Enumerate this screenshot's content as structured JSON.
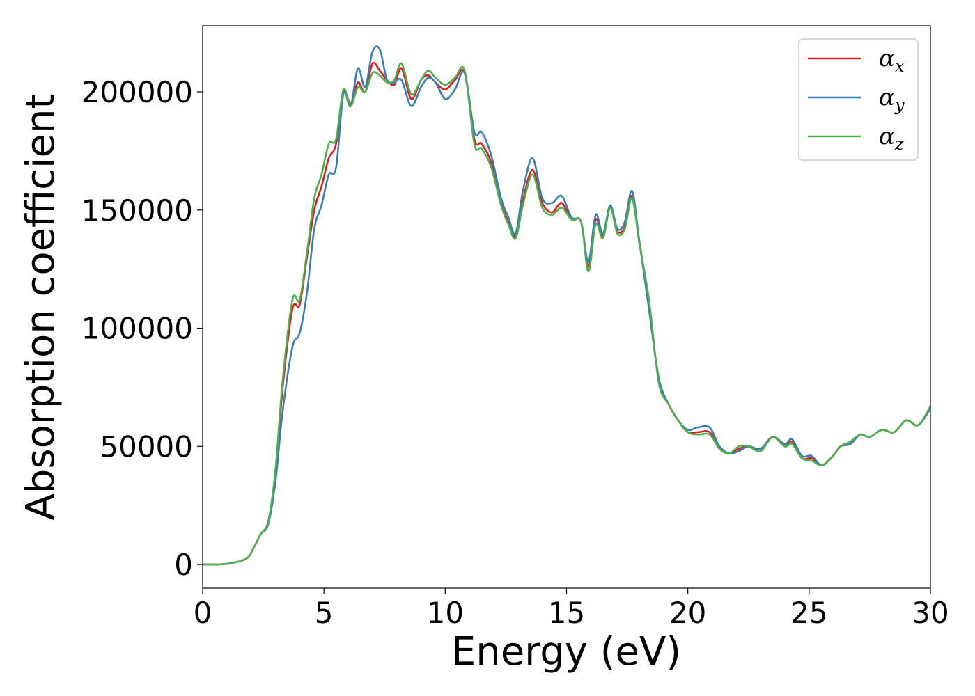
{
  "chart_data": {
    "type": "line",
    "xlabel": "Energy (eV)",
    "ylabel": "Absorption coefficient",
    "xlim": [
      0,
      30
    ],
    "ylim": [
      -10000,
      228000
    ],
    "xticks": [
      0,
      5,
      10,
      15,
      20,
      25,
      30
    ],
    "xtick_labels": [
      "0",
      "5",
      "10",
      "15",
      "20",
      "25",
      "30"
    ],
    "yticks": [
      0,
      50000,
      100000,
      150000,
      200000
    ],
    "ytick_labels": [
      "0",
      "50000",
      "100000",
      "150000",
      "200000"
    ],
    "grid": false,
    "legend_position": "top-right",
    "series": [
      {
        "name": "αx",
        "legend_base": "α",
        "legend_sub": "x",
        "color": "#e41a1c",
        "points": [
          [
            0,
            0
          ],
          [
            1,
            300
          ],
          [
            1.8,
            2500
          ],
          [
            2.1,
            7000
          ],
          [
            2.4,
            13000
          ],
          [
            2.7,
            18000
          ],
          [
            3,
            38000
          ],
          [
            3.3,
            75000
          ],
          [
            3.7,
            108000
          ],
          [
            4,
            110000
          ],
          [
            4.3,
            130000
          ],
          [
            4.6,
            150000
          ],
          [
            4.9,
            160000
          ],
          [
            5.2,
            172000
          ],
          [
            5.5,
            178000
          ],
          [
            5.8,
            200000
          ],
          [
            6.1,
            195000
          ],
          [
            6.4,
            204000
          ],
          [
            6.7,
            200000
          ],
          [
            7,
            212000
          ],
          [
            7.3,
            209000
          ],
          [
            7.6,
            205000
          ],
          [
            7.9,
            203000
          ],
          [
            8.2,
            210000
          ],
          [
            8.6,
            197000
          ],
          [
            9,
            205000
          ],
          [
            9.3,
            207000
          ],
          [
            9.6,
            204000
          ],
          [
            10,
            201000
          ],
          [
            10.4,
            205000
          ],
          [
            10.8,
            208000
          ],
          [
            11.2,
            180000
          ],
          [
            11.5,
            178000
          ],
          [
            11.9,
            170000
          ],
          [
            12.3,
            153000
          ],
          [
            12.6,
            145000
          ],
          [
            12.9,
            139000
          ],
          [
            13.2,
            154000
          ],
          [
            13.6,
            167000
          ],
          [
            14,
            153000
          ],
          [
            14.4,
            149000
          ],
          [
            14.8,
            153000
          ],
          [
            15.2,
            146000
          ],
          [
            15.6,
            145000
          ],
          [
            15.9,
            126000
          ],
          [
            16.2,
            146000
          ],
          [
            16.5,
            139000
          ],
          [
            16.8,
            151000
          ],
          [
            17.1,
            141000
          ],
          [
            17.4,
            143000
          ],
          [
            17.7,
            156000
          ],
          [
            18,
            137000
          ],
          [
            18.4,
            110000
          ],
          [
            18.8,
            78000
          ],
          [
            19.2,
            68000
          ],
          [
            19.6,
            61000
          ],
          [
            20,
            56000
          ],
          [
            20.4,
            56000
          ],
          [
            20.9,
            56000
          ],
          [
            21.3,
            50000
          ],
          [
            21.7,
            47000
          ],
          [
            22.1,
            49000
          ],
          [
            22.5,
            50000
          ],
          [
            23,
            49000
          ],
          [
            23.5,
            54000
          ],
          [
            24,
            50000
          ],
          [
            24.3,
            52000
          ],
          [
            24.7,
            45000
          ],
          [
            25.1,
            45000
          ],
          [
            25.5,
            42000
          ],
          [
            25.9,
            45000
          ],
          [
            26.3,
            50000
          ],
          [
            26.7,
            51000
          ],
          [
            27.1,
            55000
          ],
          [
            27.5,
            54000
          ],
          [
            28,
            57000
          ],
          [
            28.5,
            56000
          ],
          [
            29,
            61000
          ],
          [
            29.5,
            59000
          ],
          [
            30,
            67000
          ]
        ]
      },
      {
        "name": "αy",
        "legend_base": "α",
        "legend_sub": "y",
        "color": "#377eb8",
        "points": [
          [
            0,
            0
          ],
          [
            1,
            300
          ],
          [
            1.8,
            2500
          ],
          [
            2.1,
            7000
          ],
          [
            2.4,
            13000
          ],
          [
            2.7,
            17000
          ],
          [
            3,
            35000
          ],
          [
            3.3,
            65000
          ],
          [
            3.7,
            92000
          ],
          [
            4,
            98000
          ],
          [
            4.3,
            115000
          ],
          [
            4.6,
            142000
          ],
          [
            4.9,
            152000
          ],
          [
            5.2,
            165000
          ],
          [
            5.5,
            168000
          ],
          [
            5.8,
            199000
          ],
          [
            6.1,
            194000
          ],
          [
            6.4,
            210000
          ],
          [
            6.7,
            202000
          ],
          [
            7,
            217000
          ],
          [
            7.3,
            218000
          ],
          [
            7.6,
            205000
          ],
          [
            7.9,
            204000
          ],
          [
            8.2,
            205000
          ],
          [
            8.6,
            194000
          ],
          [
            9,
            202000
          ],
          [
            9.3,
            206000
          ],
          [
            9.6,
            204000
          ],
          [
            10,
            197000
          ],
          [
            10.4,
            201000
          ],
          [
            10.8,
            208000
          ],
          [
            11.2,
            183000
          ],
          [
            11.5,
            183000
          ],
          [
            11.9,
            173000
          ],
          [
            12.3,
            155000
          ],
          [
            12.6,
            147000
          ],
          [
            12.9,
            140000
          ],
          [
            13.2,
            158000
          ],
          [
            13.6,
            172000
          ],
          [
            14,
            155000
          ],
          [
            14.4,
            153000
          ],
          [
            14.8,
            156000
          ],
          [
            15.2,
            147000
          ],
          [
            15.6,
            145000
          ],
          [
            15.9,
            128000
          ],
          [
            16.2,
            148000
          ],
          [
            16.5,
            140000
          ],
          [
            16.8,
            152000
          ],
          [
            17.1,
            142000
          ],
          [
            17.4,
            145000
          ],
          [
            17.7,
            158000
          ],
          [
            18,
            137000
          ],
          [
            18.4,
            108000
          ],
          [
            18.8,
            79000
          ],
          [
            19.2,
            68000
          ],
          [
            19.6,
            61000
          ],
          [
            20,
            57000
          ],
          [
            20.4,
            58000
          ],
          [
            20.9,
            58000
          ],
          [
            21.3,
            50000
          ],
          [
            21.7,
            47000
          ],
          [
            22.1,
            48000
          ],
          [
            22.5,
            50000
          ],
          [
            23,
            49000
          ],
          [
            23.5,
            54000
          ],
          [
            24,
            51000
          ],
          [
            24.3,
            53000
          ],
          [
            24.7,
            46000
          ],
          [
            25.1,
            46000
          ],
          [
            25.5,
            42000
          ],
          [
            25.9,
            45000
          ],
          [
            26.3,
            50000
          ],
          [
            26.7,
            51000
          ],
          [
            27.1,
            55000
          ],
          [
            27.5,
            54000
          ],
          [
            28,
            57000
          ],
          [
            28.5,
            56000
          ],
          [
            29,
            61000
          ],
          [
            29.5,
            59000
          ],
          [
            30,
            66000
          ]
        ]
      },
      {
        "name": "αz",
        "legend_base": "α",
        "legend_sub": "z",
        "color": "#4daf4a",
        "points": [
          [
            0,
            0
          ],
          [
            1,
            300
          ],
          [
            1.8,
            2500
          ],
          [
            2.1,
            7000
          ],
          [
            2.4,
            13000
          ],
          [
            2.7,
            18000
          ],
          [
            3,
            40000
          ],
          [
            3.3,
            78000
          ],
          [
            3.7,
            112000
          ],
          [
            4,
            112000
          ],
          [
            4.3,
            132000
          ],
          [
            4.6,
            155000
          ],
          [
            4.9,
            165000
          ],
          [
            5.2,
            178000
          ],
          [
            5.5,
            180000
          ],
          [
            5.8,
            201000
          ],
          [
            6.1,
            194000
          ],
          [
            6.4,
            202000
          ],
          [
            6.7,
            200000
          ],
          [
            7,
            208000
          ],
          [
            7.3,
            207000
          ],
          [
            7.6,
            204000
          ],
          [
            7.9,
            205000
          ],
          [
            8.2,
            212000
          ],
          [
            8.6,
            199000
          ],
          [
            9,
            205000
          ],
          [
            9.3,
            209000
          ],
          [
            9.6,
            206000
          ],
          [
            10,
            203000
          ],
          [
            10.4,
            206000
          ],
          [
            10.8,
            209000
          ],
          [
            11.2,
            178000
          ],
          [
            11.5,
            176000
          ],
          [
            11.9,
            168000
          ],
          [
            12.3,
            152000
          ],
          [
            12.6,
            144000
          ],
          [
            12.9,
            138000
          ],
          [
            13.2,
            152000
          ],
          [
            13.6,
            165000
          ],
          [
            14,
            151000
          ],
          [
            14.4,
            148000
          ],
          [
            14.8,
            151000
          ],
          [
            15.2,
            146000
          ],
          [
            15.6,
            145000
          ],
          [
            15.9,
            124000
          ],
          [
            16.2,
            144000
          ],
          [
            16.5,
            138000
          ],
          [
            16.8,
            151000
          ],
          [
            17.1,
            140000
          ],
          [
            17.4,
            142000
          ],
          [
            17.7,
            155000
          ],
          [
            18,
            136000
          ],
          [
            18.4,
            112000
          ],
          [
            18.8,
            77000
          ],
          [
            19.2,
            68000
          ],
          [
            19.6,
            61000
          ],
          [
            20,
            56000
          ],
          [
            20.4,
            55000
          ],
          [
            20.9,
            55000
          ],
          [
            21.3,
            49000
          ],
          [
            21.7,
            47000
          ],
          [
            22.1,
            50000
          ],
          [
            22.5,
            50000
          ],
          [
            23,
            48000
          ],
          [
            23.5,
            54000
          ],
          [
            24,
            50000
          ],
          [
            24.3,
            51000
          ],
          [
            24.7,
            45000
          ],
          [
            25.1,
            44000
          ],
          [
            25.5,
            42000
          ],
          [
            25.9,
            45000
          ],
          [
            26.3,
            50000
          ],
          [
            26.7,
            52000
          ],
          [
            27.1,
            55000
          ],
          [
            27.5,
            54000
          ],
          [
            28,
            57000
          ],
          [
            28.5,
            56000
          ],
          [
            29,
            61000
          ],
          [
            29.5,
            59000
          ],
          [
            30,
            67000
          ]
        ]
      }
    ]
  }
}
